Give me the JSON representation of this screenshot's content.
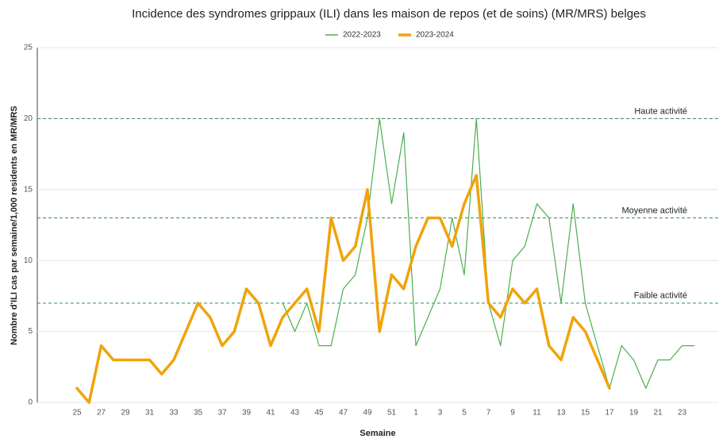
{
  "chart_data": {
    "type": "line",
    "title": "Incidence des syndromes grippaux (ILI) dans les maison de repos (et de soins) (MR/MRS) belges",
    "x_label": "Semaine",
    "y_label": "Nombre d'ILI cas par semaine/1,000 residents en MR/MRS",
    "categories": [
      25,
      null,
      27,
      null,
      29,
      null,
      31,
      null,
      33,
      null,
      35,
      null,
      37,
      null,
      39,
      null,
      41,
      null,
      43,
      null,
      45,
      null,
      47,
      null,
      49,
      null,
      51,
      null,
      1,
      null,
      3,
      null,
      5,
      null,
      7,
      null,
      9,
      null,
      11,
      null,
      13,
      null,
      15,
      null,
      17,
      null,
      19,
      null,
      21,
      null,
      23,
      null
    ],
    "series": [
      {
        "name": "2022-2023",
        "color": "#4cae4c",
        "values": [
          null,
          null,
          null,
          null,
          null,
          null,
          null,
          null,
          null,
          null,
          null,
          null,
          null,
          null,
          null,
          null,
          null,
          7,
          5,
          7,
          4,
          4,
          8,
          9,
          13,
          20,
          14,
          19,
          4,
          6,
          8,
          13,
          9,
          20,
          7,
          4,
          10,
          11,
          14,
          13,
          7,
          14,
          7,
          4,
          1,
          4,
          3,
          1,
          3,
          3,
          4,
          4
        ]
      },
      {
        "name": "2023-2024",
        "color": "#f0a30a",
        "values": [
          1,
          0,
          4,
          3,
          3,
          3,
          3,
          2,
          3,
          5,
          7,
          6,
          4,
          5,
          8,
          7,
          4,
          6,
          7,
          8,
          5,
          13,
          10,
          11,
          15,
          5,
          9,
          8,
          11,
          13,
          13,
          11,
          14,
          16,
          7,
          6,
          8,
          7,
          8,
          4,
          3,
          6,
          5,
          3,
          1,
          null,
          null,
          null,
          null,
          null,
          null,
          null
        ]
      }
    ],
    "reference_lines": [
      {
        "value": 20,
        "label": "Haute activité"
      },
      {
        "value": 13,
        "label": "Moyenne activité"
      },
      {
        "value": 7,
        "label": "Faible activité"
      }
    ],
    "ylim": [
      0,
      25
    ],
    "yticks": [
      0,
      5,
      10,
      15,
      20,
      25
    ],
    "grid": true
  }
}
